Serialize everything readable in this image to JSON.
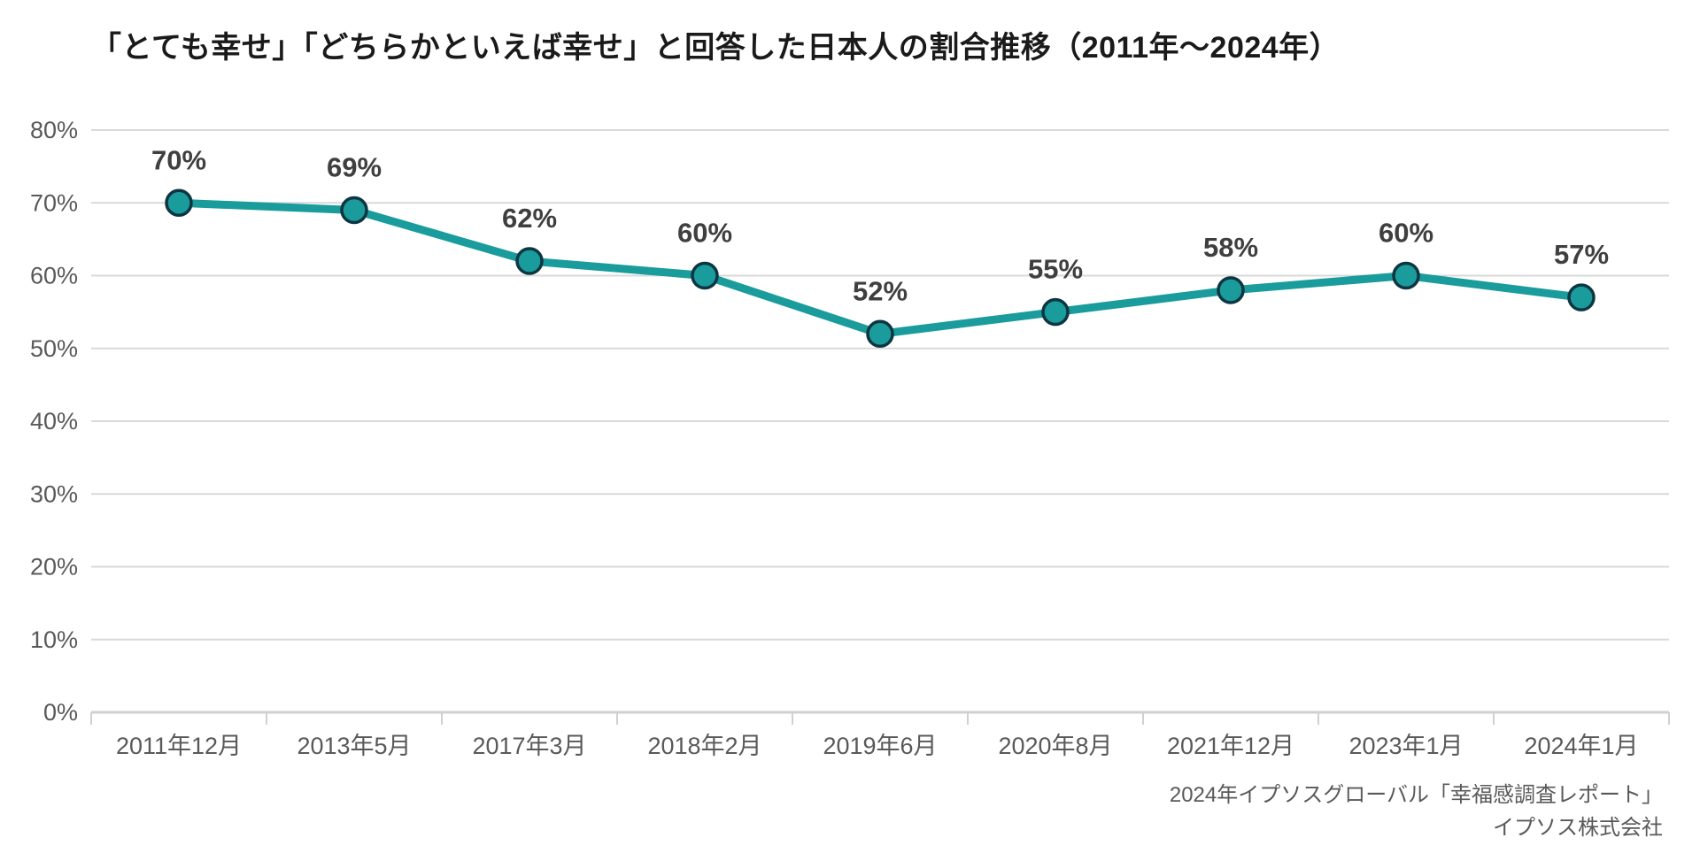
{
  "page": {
    "background": "#ffffff"
  },
  "header": {
    "title": "「とても幸せ」「どちらかといえば幸せ」と回答した日本人の割合推移（2011年～2024年）"
  },
  "footer": {
    "source_line1": "2024年イプソスグローバル「幸福感調査レポート」",
    "source_line2": "イプソス株式会社"
  },
  "chart_data": {
    "type": "line",
    "title": "「とても幸せ」「どちらかといえば幸せ」と回答した日本人の割合推移（2011年～2024年）",
    "categories": [
      "2011年12月",
      "2013年5月",
      "2017年3月",
      "2018年2月",
      "2019年6月",
      "2020年8月",
      "2021年12月",
      "2023年1月",
      "2024年1月"
    ],
    "values": [
      70,
      69,
      62,
      60,
      52,
      55,
      58,
      60,
      57
    ],
    "data_labels": [
      "70%",
      "69%",
      "62%",
      "60%",
      "52%",
      "55%",
      "58%",
      "60%",
      "57%"
    ],
    "xlabel": "",
    "ylabel": "",
    "ylim": [
      0,
      80
    ],
    "y_tick_step": 10,
    "y_tick_labels": [
      "0%",
      "10%",
      "20%",
      "30%",
      "40%",
      "50%",
      "60%",
      "70%",
      "80%"
    ],
    "grid": true,
    "legend": "none",
    "colors": {
      "line": "#199c9b",
      "marker_fill": "#199c9b",
      "marker_border": "#0e3642",
      "grid": "#d9d9d9",
      "axis_line": "#d0d0d0",
      "axis_text": "#595959",
      "data_label_text": "#3f3f3f",
      "title_text": "#1a1a1a"
    }
  }
}
